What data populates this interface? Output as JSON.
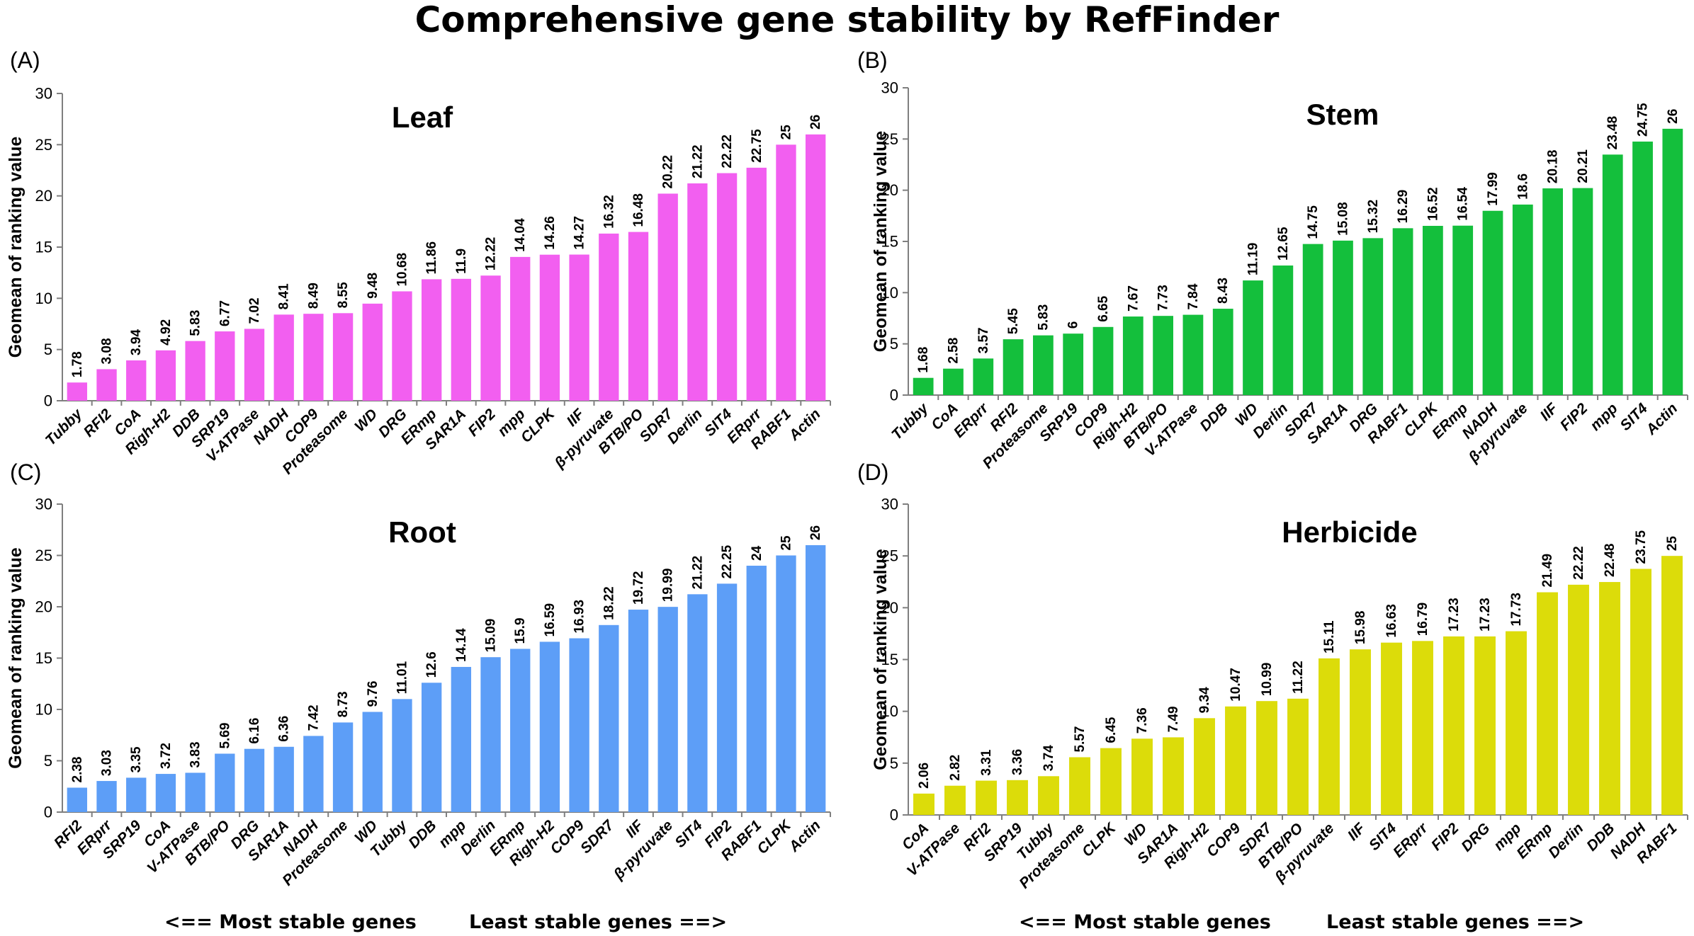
{
  "title": "Comprehensive gene stability by RefFinder",
  "footer": {
    "most": "<== Most stable genes",
    "least": "Least stable genes ==>"
  },
  "colors": {
    "Leaf": "#f25ff0",
    "Stem": "#14bf3c",
    "Root": "#5d9ef7",
    "Herbicide": "#dcdc0a"
  },
  "chart_data": [
    {
      "type": "bar",
      "panel": "(A)",
      "title": "Leaf",
      "ylabel": "Geomean of ranking value",
      "xlabel": "",
      "ylim": [
        0,
        30
      ],
      "yticks": [
        0,
        5,
        10,
        15,
        20,
        25,
        30
      ],
      "grid": false,
      "categories": [
        "Tubby",
        "RFI2",
        "CoA",
        "Righ-H2",
        "DDB",
        "SRP19",
        "V-ATPase",
        "NADH",
        "COP9",
        "Proteasome",
        "WD",
        "DRG",
        "ERmp",
        "SAR1A",
        "FIP2",
        "mpp",
        "CLPK",
        "IIF",
        "β-pyruvate",
        "BTB/PO",
        "SDR7",
        "Derlin",
        "SIT4",
        "ERprr",
        "RABF1",
        "Actin"
      ],
      "values": [
        1.78,
        3.08,
        3.94,
        4.92,
        5.83,
        6.77,
        7.02,
        8.41,
        8.49,
        8.55,
        9.48,
        10.68,
        11.86,
        11.9,
        12.22,
        14.04,
        14.26,
        14.27,
        16.32,
        16.48,
        20.22,
        21.22,
        22.22,
        22.75,
        25,
        26
      ],
      "value_labels": [
        "1.78",
        "3.08",
        "3.94",
        "4.92",
        "5.83",
        "6.77",
        "7.02",
        "8.41",
        "8.49",
        "8.55",
        "9.48",
        "10.68",
        "11.86",
        "11.9",
        "12.22",
        "14.04",
        "14.26",
        "14.27",
        "16.32",
        "16.48",
        "20.22",
        "21.22",
        "22.22",
        "22.75",
        "25",
        "26"
      ]
    },
    {
      "type": "bar",
      "panel": "(B)",
      "title": "Stem",
      "ylabel": "Geomean of ranking value",
      "xlabel": "",
      "ylim": [
        0,
        30
      ],
      "yticks": [
        0,
        5,
        10,
        15,
        20,
        25,
        30
      ],
      "grid": false,
      "categories": [
        "Tubby",
        "CoA",
        "ERprr",
        "RFI2",
        "Proteasome",
        "SRP19",
        "COP9",
        "Righ-H2",
        "BTB/PO",
        "V-ATPase",
        "DDB",
        "WD",
        "Derlin",
        "SDR7",
        "SAR1A",
        "DRG",
        "RABF1",
        "CLPK",
        "ERmp",
        "NADH",
        "β-pyruvate",
        "IIF",
        "FIP2",
        "mpp",
        "SIT4",
        "Actin"
      ],
      "values": [
        1.68,
        2.58,
        3.57,
        5.45,
        5.83,
        6,
        6.65,
        7.67,
        7.73,
        7.84,
        8.43,
        11.19,
        12.65,
        14.75,
        15.08,
        15.32,
        16.29,
        16.52,
        16.54,
        17.99,
        18.6,
        20.18,
        20.21,
        23.48,
        24.75,
        26
      ],
      "value_labels": [
        "1.68",
        "2.58",
        "3.57",
        "5.45",
        "5.83",
        "6",
        "6.65",
        "7.67",
        "7.73",
        "7.84",
        "8.43",
        "11.19",
        "12.65",
        "14.75",
        "15.08",
        "15.32",
        "16.29",
        "16.52",
        "16.54",
        "17.99",
        "18.6",
        "20.18",
        "20.21",
        "23.48",
        "24.75",
        "26"
      ]
    },
    {
      "type": "bar",
      "panel": "(C)",
      "title": "Root",
      "ylabel": "Geomean of ranking value",
      "xlabel": "",
      "ylim": [
        0,
        30
      ],
      "yticks": [
        0,
        5,
        10,
        15,
        20,
        25,
        30
      ],
      "grid": false,
      "categories": [
        "RFI2",
        "ERprr",
        "SRP19",
        "CoA",
        "V-ATPase",
        "BTB/PO",
        "DRG",
        "SAR1A",
        "NADH",
        "Proteasome",
        "WD",
        "Tubby",
        "DDB",
        "mpp",
        "Derlin",
        "ERmp",
        "Righ-H2",
        "COP9",
        "SDR7",
        "IIF",
        "β-pyruvate",
        "SIT4",
        "FIP2",
        "RABF1",
        "CLPK",
        "Actin"
      ],
      "values": [
        2.38,
        3.03,
        3.35,
        3.72,
        3.83,
        5.69,
        6.16,
        6.36,
        7.42,
        8.73,
        9.76,
        11.01,
        12.6,
        14.14,
        15.09,
        15.9,
        16.59,
        16.93,
        18.22,
        19.72,
        19.99,
        21.22,
        22.25,
        24,
        25,
        26
      ],
      "value_labels": [
        "2.38",
        "3.03",
        "3.35",
        "3.72",
        "3.83",
        "5.69",
        "6.16",
        "6.36",
        "7.42",
        "8.73",
        "9.76",
        "11.01",
        "12.6",
        "14.14",
        "15.09",
        "15.9",
        "16.59",
        "16.93",
        "18.22",
        "19.72",
        "19.99",
        "21.22",
        "22.25",
        "24",
        "25",
        "26"
      ]
    },
    {
      "type": "bar",
      "panel": "(D)",
      "title": "Herbicide",
      "ylabel": "Geomean of ranking value",
      "xlabel": "",
      "ylim": [
        0,
        30
      ],
      "yticks": [
        0,
        5,
        10,
        15,
        20,
        25,
        30
      ],
      "grid": false,
      "categories": [
        "CoA",
        "V-ATPase",
        "RFI2",
        "SRP19",
        "Tubby",
        "Proteasome",
        "CLPK",
        "WD",
        "SAR1A",
        "Righ-H2",
        "COP9",
        "SDR7",
        "BTB/PO",
        "β-pyruvate",
        "IIF",
        "SIT4",
        "ERprr",
        "FIP2",
        "DRG",
        "mpp",
        "ERmp",
        "Derlin",
        "DDB",
        "NADH",
        "RABF1"
      ],
      "values": [
        2.06,
        2.82,
        3.31,
        3.36,
        3.74,
        5.57,
        6.45,
        7.36,
        7.49,
        9.34,
        10.47,
        10.99,
        11.22,
        15.11,
        15.98,
        16.63,
        16.79,
        17.23,
        17.23,
        17.73,
        21.49,
        22.22,
        22.48,
        23.75,
        25
      ],
      "value_labels": [
        "2.06",
        "2.82",
        "3.31",
        "3.36",
        "3.74",
        "5.57",
        "6.45",
        "7.36",
        "7.49",
        "9.34",
        "10.47",
        "10.99",
        "11.22",
        "15.11",
        "15.98",
        "16.63",
        "16.79",
        "17.23",
        "17.23",
        "17.73",
        "21.49",
        "22.22",
        "22.48",
        "23.75",
        "25"
      ]
    }
  ]
}
